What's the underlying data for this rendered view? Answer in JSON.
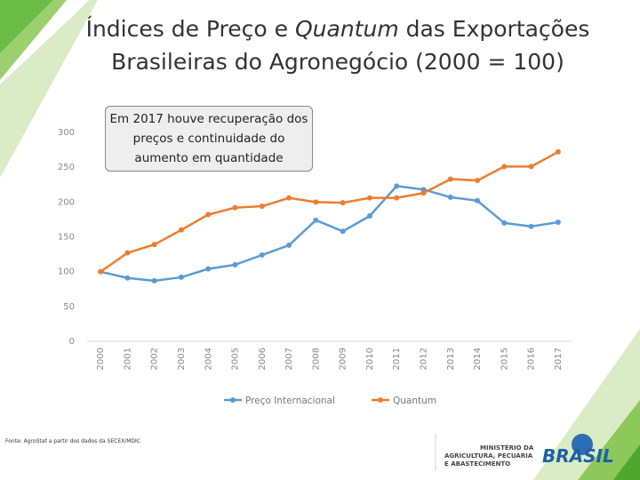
{
  "chart_data": {
    "type": "line",
    "title": [
      "Índices de Preço e ",
      "Quantum",
      " das Exportações",
      "Brasileiras do Agronegócio (2000 = 100)"
    ],
    "annotation": "Em 2017 houve recuperação dos preços e continuidade do aumento em quantidade",
    "categories": [
      "2000",
      "2001",
      "2002",
      "2003",
      "2004",
      "2005",
      "2006",
      "2007",
      "2008",
      "2009",
      "2010",
      "2011",
      "2012",
      "2013",
      "2014",
      "2015",
      "2016",
      "2017"
    ],
    "series": [
      {
        "name": "Preço Internacional",
        "color": "#5b9bd5",
        "values": [
          100,
          91,
          87,
          92,
          104,
          110,
          124,
          138,
          174,
          158,
          180,
          223,
          218,
          207,
          202,
          170,
          165,
          171
        ]
      },
      {
        "name": "Quantum",
        "color": "#ed7d31",
        "values": [
          100,
          127,
          139,
          160,
          182,
          192,
          194,
          206,
          200,
          199,
          206,
          206,
          213,
          233,
          231,
          251,
          251,
          272
        ]
      }
    ],
    "ylim": [
      0,
      300
    ],
    "yticks": [
      0,
      50,
      100,
      150,
      200,
      250,
      300
    ],
    "grid": false,
    "legend": "bottom"
  },
  "source": "Fonte: AgroStat a partir dos dados da SECEX/MDIC",
  "logo": {
    "ministry": [
      "MINISTÉRIO DA",
      "AGRICULTURA, PECUÁRIA",
      "E ABASTECIMENTO"
    ],
    "country": "BRASIL"
  }
}
